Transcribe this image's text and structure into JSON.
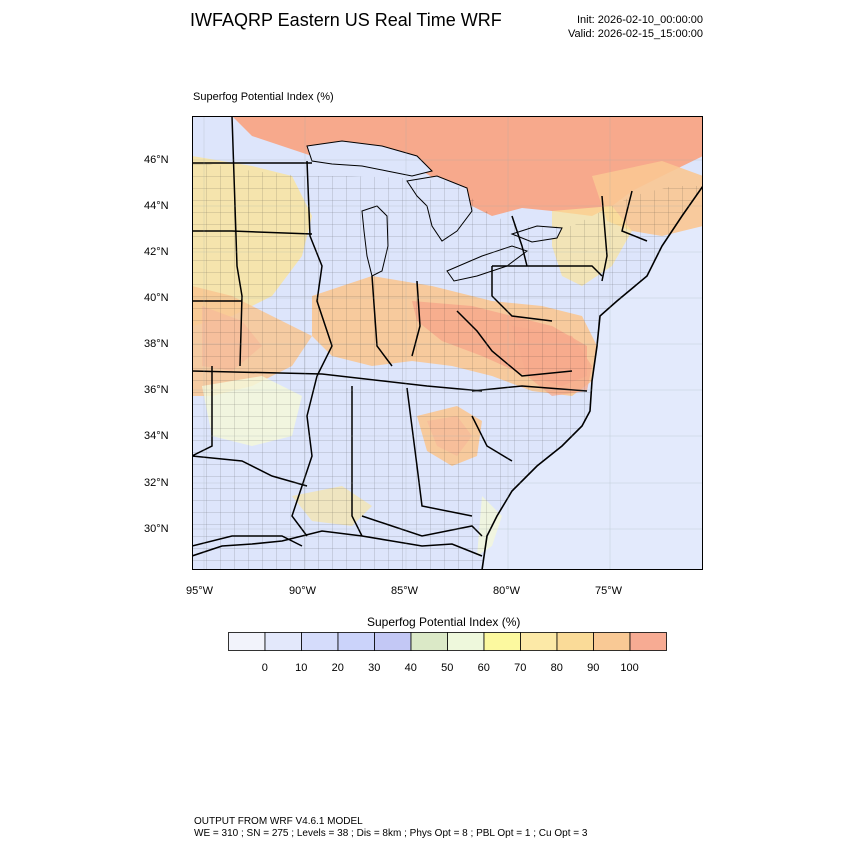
{
  "header": {
    "title": "IWFAQRP Eastern US Real Time WRF",
    "init": "Init: 2026-02-10_00:00:00",
    "valid": "Valid: 2026-02-15_15:00:00"
  },
  "map": {
    "field_label": "Superfog Potential Index   (%)",
    "lat_labels": [
      "46°N",
      "44°N",
      "42°N",
      "40°N",
      "38°N",
      "36°N",
      "34°N",
      "32°N",
      "30°N"
    ],
    "lon_labels": [
      "95°W",
      "90°W",
      "85°W",
      "80°W",
      "75°W"
    ],
    "colors": {
      "ocean": "#e3eafc",
      "high": "#f7a98c",
      "mid_high": "#f9c792",
      "mid": "#fbe49a",
      "low_mid": "#f4f8d9",
      "low": "#dde5fb",
      "boundary": "#000000"
    }
  },
  "colorbar": {
    "title": "Superfog Potential Index  (%)",
    "labels": [
      "0",
      "10",
      "20",
      "30",
      "40",
      "50",
      "60",
      "70",
      "80",
      "90",
      "100"
    ],
    "colors": [
      "#f2f3fb",
      "#e3e8fb",
      "#d5dcfb",
      "#cbd3fa",
      "#c3c8f5",
      "#dbe9c7",
      "#eef8dc",
      "#fcf99f",
      "#fce9a7",
      "#fadb98",
      "#f9c995",
      "#f7ab93"
    ]
  },
  "footer": {
    "line1": "OUTPUT FROM WRF V4.6.1 MODEL",
    "line2": "WE = 310 ; SN = 275 ; Levels = 38 ; Dis = 8km ; Phys Opt = 8 ; PBL Opt = 1 ; Cu Opt = 3"
  }
}
